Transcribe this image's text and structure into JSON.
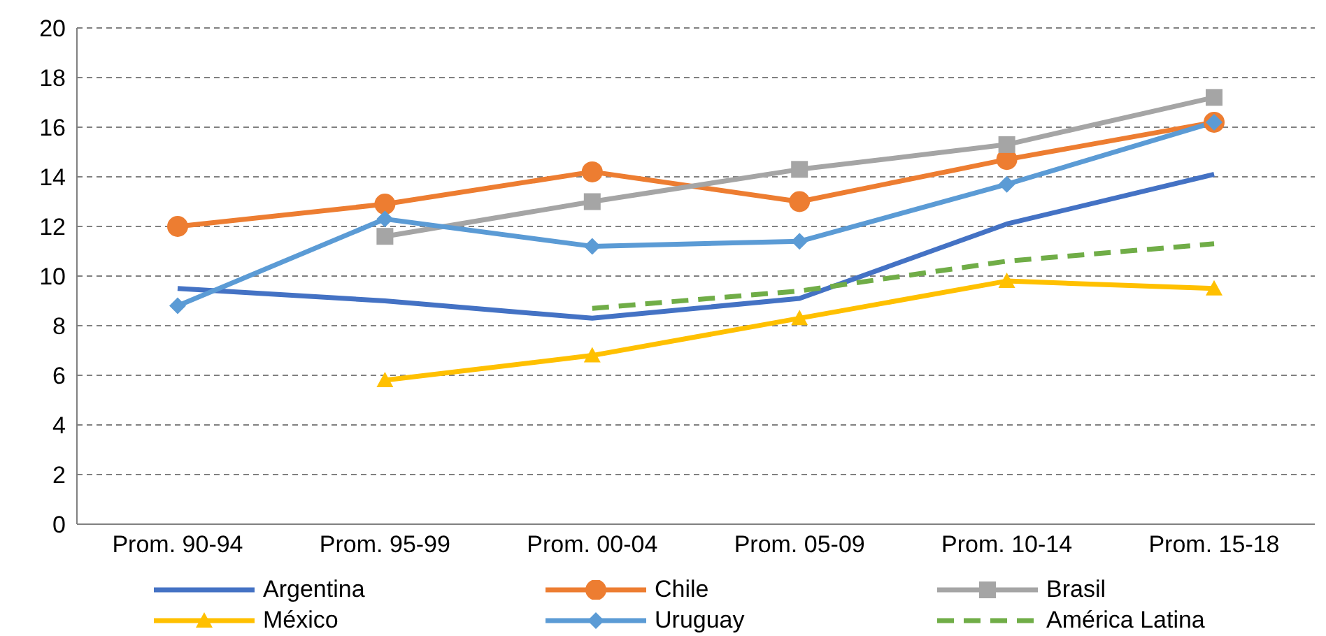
{
  "chart_data": {
    "type": "line",
    "categories": [
      "Prom. 90-94",
      "Prom. 95-99",
      "Prom. 00-04",
      "Prom. 05-09",
      "Prom. 10-14",
      "Prom. 15-18"
    ],
    "ylim": [
      0,
      20
    ],
    "yticks": [
      0,
      2,
      4,
      6,
      8,
      10,
      12,
      14,
      16,
      18,
      20
    ],
    "grid": "y",
    "legend": "bottom",
    "series": [
      {
        "name": "Argentina",
        "color": "#4472c4",
        "marker": "none",
        "values": [
          9.5,
          9.0,
          8.3,
          9.1,
          12.1,
          14.1
        ]
      },
      {
        "name": "Chile",
        "color": "#ed7d31",
        "marker": "circle",
        "values": [
          12.0,
          12.9,
          14.2,
          13.0,
          14.7,
          16.2
        ]
      },
      {
        "name": "Brasil",
        "color": "#a5a5a5",
        "marker": "square",
        "values": [
          null,
          11.6,
          13.0,
          14.3,
          15.3,
          17.2
        ]
      },
      {
        "name": "México",
        "color": "#ffc000",
        "marker": "triangle",
        "values": [
          null,
          5.8,
          6.8,
          8.3,
          9.8,
          9.5
        ]
      },
      {
        "name": "Uruguay",
        "color": "#5b9bd5",
        "marker": "diamond",
        "values": [
          8.8,
          12.3,
          11.2,
          11.4,
          13.7,
          16.2
        ]
      },
      {
        "name": "América Latina",
        "color": "#70ad47",
        "marker": "none",
        "line_style": "dashed",
        "values": [
          null,
          null,
          8.7,
          9.4,
          10.6,
          11.3
        ]
      }
    ]
  }
}
